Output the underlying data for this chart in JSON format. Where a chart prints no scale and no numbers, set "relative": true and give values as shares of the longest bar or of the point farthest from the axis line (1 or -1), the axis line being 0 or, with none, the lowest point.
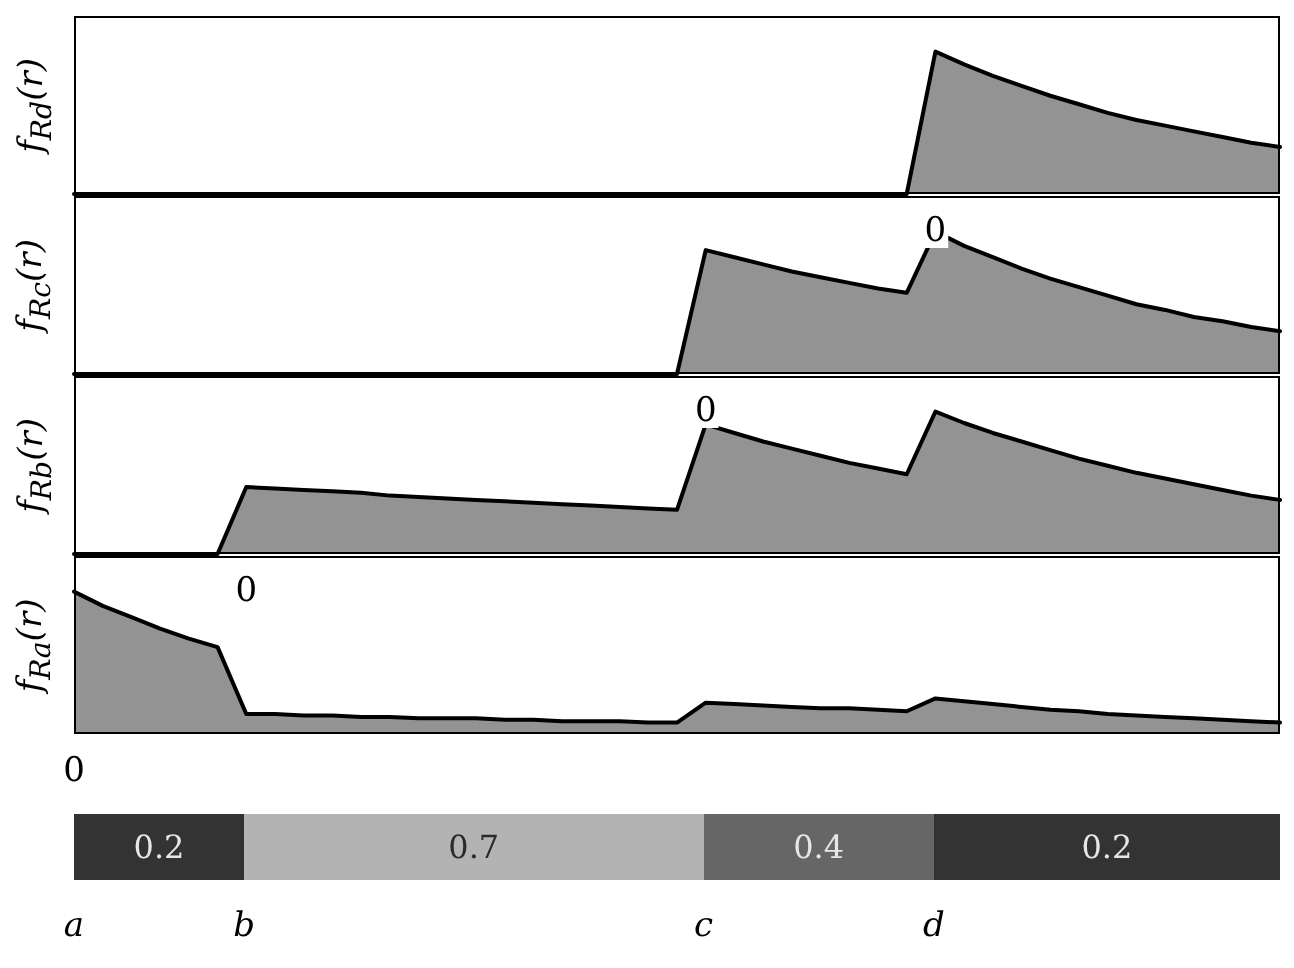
{
  "chart_data": [
    {
      "type": "area",
      "relative": true,
      "ylabel": "f$_{R}$$_{d}$(r)",
      "color": "#939393",
      "annotations": [
        "0"
      ],
      "categories": [
        null,
        null,
        null,
        null,
        null,
        null,
        null,
        null,
        null,
        null,
        null,
        null,
        null,
        null,
        null,
        null,
        null,
        null,
        null,
        null,
        null,
        null,
        null,
        null,
        null,
        null,
        null,
        null,
        null,
        null,
        null,
        null,
        null,
        null,
        null,
        null,
        null,
        null,
        null,
        null,
        null,
        null,
        null
      ],
      "values": [
        0,
        0,
        0,
        0,
        0,
        0,
        0,
        0,
        0,
        0,
        0,
        0,
        0,
        0,
        0,
        0,
        0,
        0,
        0,
        0,
        0,
        0,
        0,
        0,
        0,
        0,
        0,
        0,
        0,
        0,
        1,
        0.91,
        0.83,
        0.76,
        0.69,
        0.63,
        0.57,
        0.52,
        0.48,
        0.44,
        0.4,
        0.36,
        0.33
      ]
    },
    {
      "type": "area",
      "relative": true,
      "ylabel": "f$_{R}$$_{c}$(r)",
      "color": "#939393",
      "annotations": [
        "0"
      ],
      "categories": [
        null,
        null,
        null,
        null,
        null,
        null,
        null,
        null,
        null,
        null,
        null,
        null,
        null,
        null,
        null,
        null,
        null,
        null,
        null,
        null,
        null,
        null,
        null,
        null,
        null,
        null,
        null,
        null,
        null,
        null,
        null,
        null,
        null,
        null,
        null,
        null,
        null,
        null,
        null,
        null,
        null,
        null,
        null
      ],
      "values": [
        0,
        0,
        0,
        0,
        0,
        0,
        0,
        0,
        0,
        0,
        0,
        0,
        0,
        0,
        0,
        0,
        0,
        0,
        0,
        0,
        0,
        0,
        0.87,
        0.82,
        0.77,
        0.72,
        0.68,
        0.64,
        0.6,
        0.57,
        1,
        0.9,
        0.82,
        0.74,
        0.67,
        0.61,
        0.55,
        0.49,
        0.45,
        0.4,
        0.37,
        0.33,
        0.3
      ]
    },
    {
      "type": "area",
      "relative": true,
      "ylabel": "f$_{R}$$_{b}$(r)",
      "color": "#939393",
      "annotations": [
        "0"
      ],
      "categories": [
        null,
        null,
        null,
        null,
        null,
        null,
        null,
        null,
        null,
        null,
        null,
        null,
        null,
        null,
        null,
        null,
        null,
        null,
        null,
        null,
        null,
        null,
        null,
        null,
        null,
        null,
        null,
        null,
        null,
        null,
        null,
        null,
        null,
        null,
        null,
        null,
        null,
        null,
        null,
        null,
        null,
        null,
        null
      ],
      "values": [
        0,
        0,
        0,
        0,
        0,
        0,
        0.47,
        0.46,
        0.45,
        0.44,
        0.43,
        0.41,
        0.4,
        0.39,
        0.38,
        0.37,
        0.36,
        0.35,
        0.34,
        0.33,
        0.32,
        0.31,
        0.91,
        0.85,
        0.79,
        0.74,
        0.69,
        0.64,
        0.6,
        0.56,
        1,
        0.92,
        0.85,
        0.79,
        0.73,
        0.67,
        0.62,
        0.57,
        0.53,
        0.49,
        0.45,
        0.41,
        0.38
      ]
    },
    {
      "type": "area",
      "relative": true,
      "ylabel": "f$_{R}$$_{a}$(r)",
      "color": "#939393",
      "annotations": [
        "0"
      ],
      "categories": [
        null,
        null,
        null,
        null,
        null,
        null,
        null,
        null,
        null,
        null,
        null,
        null,
        null,
        null,
        null,
        null,
        null,
        null,
        null,
        null,
        null,
        null,
        null,
        null,
        null,
        null,
        null,
        null,
        null,
        null,
        null,
        null,
        null,
        null,
        null,
        null,
        null,
        null,
        null,
        null,
        null,
        null,
        null
      ],
      "values": [
        1,
        0.9,
        0.82,
        0.74,
        0.67,
        0.61,
        0.14,
        0.14,
        0.13,
        0.13,
        0.12,
        0.12,
        0.11,
        0.11,
        0.11,
        0.1,
        0.1,
        0.09,
        0.09,
        0.09,
        0.08,
        0.08,
        0.22,
        0.21,
        0.2,
        0.19,
        0.18,
        0.18,
        0.17,
        0.16,
        0.25,
        0.23,
        0.21,
        0.19,
        0.17,
        0.16,
        0.14,
        0.13,
        0.12,
        0.11,
        0.1,
        0.09,
        0.08
      ]
    },
    {
      "type": "other",
      "values": [
        0.2,
        0.7,
        0.4,
        0.2
      ],
      "colors": [
        "#333333",
        "#b3b3b3",
        "#666666",
        "#333333"
      ],
      "data_labels": true,
      "annotations": [
        "a",
        "b",
        "c",
        "d"
      ]
    }
  ]
}
